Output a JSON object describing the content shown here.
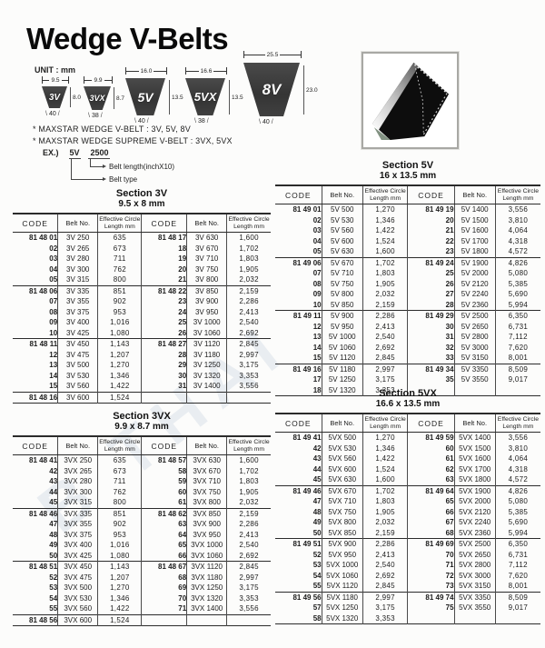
{
  "page": {
    "title": "Wedge V-Belts",
    "unit_label": "UNIT : mm"
  },
  "notes": {
    "line1": "* MAXSTAR WEDGE V-BELT : 3V, 5V, 8V",
    "line2": "* MAXSTAR WEDGE SUPREME V-BELT : 3VX, 5VX",
    "example_prefix": "EX.)",
    "example_type": "5V",
    "example_length": "2500",
    "callout_length": "Belt length(inchX10)",
    "callout_type": "Belt type"
  },
  "diagrams": [
    {
      "name": "3V",
      "top_width": "9.5",
      "height": "8.0",
      "angle": "40"
    },
    {
      "name": "3VX",
      "top_width": "9.9",
      "height": "8.7",
      "angle": "38"
    },
    {
      "name": "5V",
      "top_width": "16.0",
      "height": "13.5",
      "angle": "40"
    },
    {
      "name": "5VX",
      "top_width": "16.6",
      "height": "13.5",
      "angle": "38"
    },
    {
      "name": "8V",
      "top_width": "25.5",
      "height": "23.0",
      "angle": "40"
    }
  ],
  "photo": {
    "alt_name": "v-belt-photo"
  },
  "watermark": "B THAI",
  "column_headers": [
    "CODE",
    "Belt No.",
    "Effective Circle|Length mm",
    "CODE",
    "Belt No.",
    "Effective Circle|Length mm"
  ],
  "tables": [
    {
      "title": "Section 3V",
      "subtitle": "9.5 x 8 mm",
      "groups": [
        [
          [
            "81 48 01",
            "3V 250",
            "635",
            "81 48 17",
            "3V 630",
            "1,600"
          ],
          [
            "02",
            "3V 265",
            "673",
            "18",
            "3V 670",
            "1,702"
          ],
          [
            "03",
            "3V 280",
            "711",
            "19",
            "3V 710",
            "1,803"
          ],
          [
            "04",
            "3V 300",
            "762",
            "20",
            "3V 750",
            "1,905"
          ],
          [
            "05",
            "3V 315",
            "800",
            "21",
            "3V 800",
            "2,032"
          ]
        ],
        [
          [
            "81 48 06",
            "3V 335",
            "851",
            "81 48 22",
            "3V 850",
            "2,159"
          ],
          [
            "07",
            "3V 355",
            "902",
            "23",
            "3V 900",
            "2,286"
          ],
          [
            "08",
            "3V 375",
            "953",
            "24",
            "3V 950",
            "2,413"
          ],
          [
            "09",
            "3V 400",
            "1,016",
            "25",
            "3V 1000",
            "2,540"
          ],
          [
            "10",
            "3V 425",
            "1,080",
            "26",
            "3V 1060",
            "2,692"
          ]
        ],
        [
          [
            "81 48 11",
            "3V 450",
            "1,143",
            "81 48 27",
            "3V 1120",
            "2,845"
          ],
          [
            "12",
            "3V 475",
            "1,207",
            "28",
            "3V 1180",
            "2,997"
          ],
          [
            "13",
            "3V 500",
            "1,270",
            "29",
            "3V 1250",
            "3,175"
          ],
          [
            "14",
            "3V 530",
            "1,346",
            "30",
            "3V 1320",
            "3,353"
          ],
          [
            "15",
            "3V 560",
            "1,422",
            "31",
            "3V 1400",
            "3,556"
          ]
        ],
        [
          [
            "81 48 16",
            "3V 600",
            "1,524",
            "",
            "",
            ""
          ]
        ]
      ]
    },
    {
      "title": "Section 5V",
      "subtitle": "16 x 13.5 mm",
      "groups": [
        [
          [
            "81 49 01",
            "5V 500",
            "1,270",
            "81 49 19",
            "5V 1400",
            "3,556"
          ],
          [
            "02",
            "5V 530",
            "1,346",
            "20",
            "5V 1500",
            "3,810"
          ],
          [
            "03",
            "5V 560",
            "1,422",
            "21",
            "5V 1600",
            "4,064"
          ],
          [
            "04",
            "5V 600",
            "1,524",
            "22",
            "5V 1700",
            "4,318"
          ],
          [
            "05",
            "5V 630",
            "1,600",
            "23",
            "5V 1800",
            "4,572"
          ]
        ],
        [
          [
            "81 49 06",
            "5V 670",
            "1,702",
            "81 49 24",
            "5V 1900",
            "4,826"
          ],
          [
            "07",
            "5V 710",
            "1,803",
            "25",
            "5V 2000",
            "5,080"
          ],
          [
            "08",
            "5V 750",
            "1,905",
            "26",
            "5V 2120",
            "5,385"
          ],
          [
            "09",
            "5V 800",
            "2,032",
            "27",
            "5V 2240",
            "5,690"
          ],
          [
            "10",
            "5V 850",
            "2,159",
            "28",
            "5V 2360",
            "5,994"
          ]
        ],
        [
          [
            "81 49 11",
            "5V 900",
            "2,286",
            "81 49 29",
            "5V 2500",
            "6,350"
          ],
          [
            "12",
            "5V 950",
            "2,413",
            "30",
            "5V 2650",
            "6,731"
          ],
          [
            "13",
            "5V 1000",
            "2,540",
            "31",
            "5V 2800",
            "7,112"
          ],
          [
            "14",
            "5V 1060",
            "2,692",
            "32",
            "5V 3000",
            "7,620"
          ],
          [
            "15",
            "5V 1120",
            "2,845",
            "33",
            "5V 3150",
            "8,001"
          ]
        ],
        [
          [
            "81 49 16",
            "5V 1180",
            "2,997",
            "81 49 34",
            "5V 3350",
            "8,509"
          ],
          [
            "17",
            "5V 1250",
            "3,175",
            "35",
            "5V 3550",
            "9,017"
          ],
          [
            "18",
            "5V 1320",
            "3,353",
            "",
            "",
            ""
          ]
        ]
      ]
    },
    {
      "title": "Section 3VX",
      "subtitle": "9.9 x 8.7 mm",
      "groups": [
        [
          [
            "81 48 41",
            "3VX 250",
            "635",
            "81 48 57",
            "3VX 630",
            "1,600"
          ],
          [
            "42",
            "3VX 265",
            "673",
            "58",
            "3VX 670",
            "1,702"
          ],
          [
            "43",
            "3VX 280",
            "711",
            "59",
            "3VX 710",
            "1,803"
          ],
          [
            "44",
            "3VX 300",
            "762",
            "60",
            "3VX 750",
            "1,905"
          ],
          [
            "45",
            "3VX 315",
            "800",
            "61",
            "3VX 800",
            "2,032"
          ]
        ],
        [
          [
            "81 48 46",
            "3VX 335",
            "851",
            "81 48 62",
            "3VX 850",
            "2,159"
          ],
          [
            "47",
            "3VX 355",
            "902",
            "63",
            "3VX 900",
            "2,286"
          ],
          [
            "48",
            "3VX 375",
            "953",
            "64",
            "3VX 950",
            "2,413"
          ],
          [
            "49",
            "3VX 400",
            "1,016",
            "65",
            "3VX 1000",
            "2,540"
          ],
          [
            "50",
            "3VX 425",
            "1,080",
            "66",
            "3VX 1060",
            "2,692"
          ]
        ],
        [
          [
            "81 48 51",
            "3VX 450",
            "1,143",
            "81 48 67",
            "3VX 1120",
            "2,845"
          ],
          [
            "52",
            "3VX 475",
            "1,207",
            "68",
            "3VX 1180",
            "2,997"
          ],
          [
            "53",
            "3VX 500",
            "1,270",
            "69",
            "3VX 1250",
            "3,175"
          ],
          [
            "54",
            "3VX 530",
            "1,346",
            "70",
            "3VX 1320",
            "3,353"
          ],
          [
            "55",
            "3VX 560",
            "1,422",
            "71",
            "3VX 1400",
            "3,556"
          ]
        ],
        [
          [
            "81 48 56",
            "3VX 600",
            "1,524",
            "",
            "",
            ""
          ]
        ]
      ]
    },
    {
      "title": "Section 5VX",
      "subtitle": "16.6 x 13.5 mm",
      "groups": [
        [
          [
            "81 49 41",
            "5VX 500",
            "1,270",
            "81 49 59",
            "5VX 1400",
            "3,556"
          ],
          [
            "42",
            "5VX 530",
            "1,346",
            "60",
            "5VX 1500",
            "3,810"
          ],
          [
            "43",
            "5VX 560",
            "1,422",
            "61",
            "5VX 1600",
            "4,064"
          ],
          [
            "44",
            "5VX 600",
            "1,524",
            "62",
            "5VX 1700",
            "4,318"
          ],
          [
            "45",
            "5VX 630",
            "1,600",
            "63",
            "5VX 1800",
            "4,572"
          ]
        ],
        [
          [
            "81 49 46",
            "5VX 670",
            "1,702",
            "81 49 64",
            "5VX 1900",
            "4,826"
          ],
          [
            "47",
            "5VX 710",
            "1,803",
            "65",
            "5VX 2000",
            "5,080"
          ],
          [
            "48",
            "5VX 750",
            "1,905",
            "66",
            "5VX 2120",
            "5,385"
          ],
          [
            "49",
            "5VX 800",
            "2,032",
            "67",
            "5VX 2240",
            "5,690"
          ],
          [
            "50",
            "5VX 850",
            "2,159",
            "68",
            "5VX 2360",
            "5,994"
          ]
        ],
        [
          [
            "81 49 51",
            "5VX 900",
            "2,286",
            "81 49 69",
            "5VX 2500",
            "6,350"
          ],
          [
            "52",
            "5VX 950",
            "2,413",
            "70",
            "5VX 2650",
            "6,731"
          ],
          [
            "53",
            "5VX 1000",
            "2,540",
            "71",
            "5VX 2800",
            "7,112"
          ],
          [
            "54",
            "5VX 1060",
            "2,692",
            "72",
            "5VX 3000",
            "7,620"
          ],
          [
            "55",
            "5VX 1120",
            "2,845",
            "73",
            "5VX 3150",
            "8,001"
          ]
        ],
        [
          [
            "81 49 56",
            "5VX 1180",
            "2,997",
            "81 49 74",
            "5VX 3350",
            "8,509"
          ],
          [
            "57",
            "5VX 1250",
            "3,175",
            "75",
            "5VX 3550",
            "9,017"
          ],
          [
            "58",
            "5VX 1320",
            "3,353",
            "",
            "",
            ""
          ]
        ]
      ]
    }
  ]
}
